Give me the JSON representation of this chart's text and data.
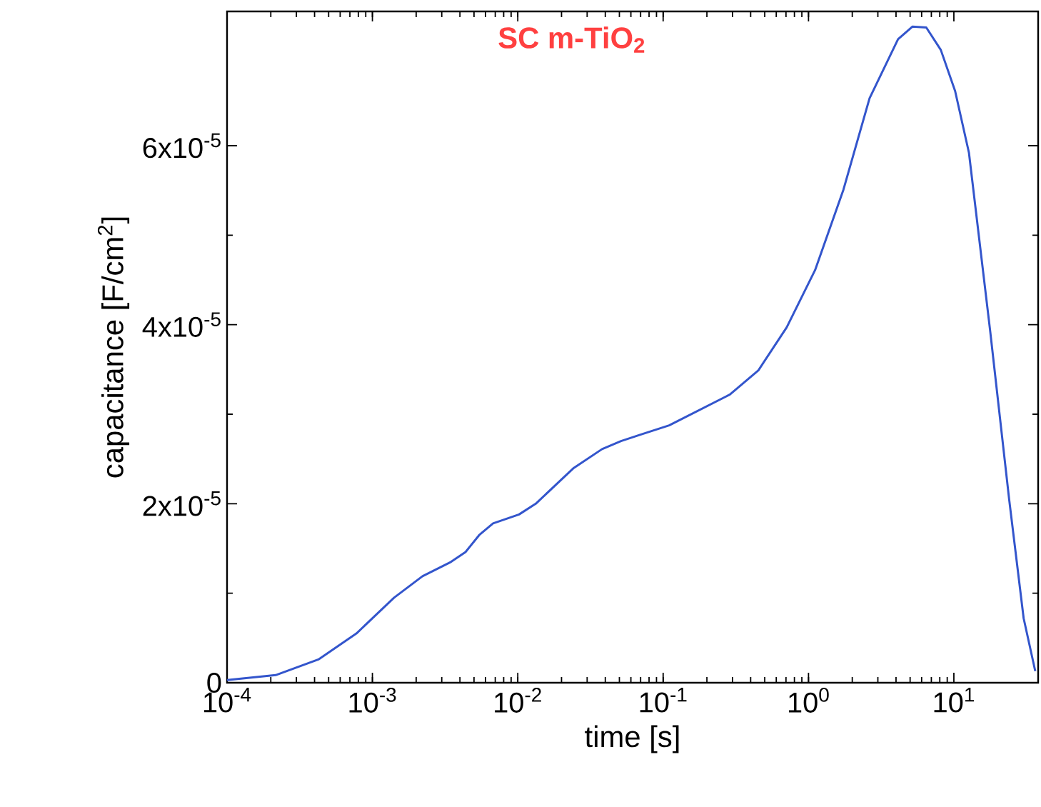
{
  "chart_data": {
    "type": "line",
    "xlabel": "time [s]",
    "ylabel": "capacitance [F/cm$^{2}$]",
    "log": "x",
    "annotations": [
      "**SC m-TiO$_{2}$**"
    ],
    "xlim": [
      0.0001,
      38
    ],
    "ylim": [
      0,
      7.5e-05
    ],
    "xticks": [
      {
        "value": 0.0001,
        "label": "10$^{-4}$"
      },
      {
        "value": 0.001,
        "label": "10$^{-3}$"
      },
      {
        "value": 0.01,
        "label": "10$^{-2}$"
      },
      {
        "value": 0.1,
        "label": "10$^{-1}$"
      },
      {
        "value": 1,
        "label": "10$^{0}$"
      },
      {
        "value": 10,
        "label": "10$^{1}$"
      }
    ],
    "yticks": [
      0,
      {
        "value": 2e-05,
        "label": "2x10$^{-5}$"
      },
      {
        "value": 4e-05,
        "label": "4x10$^{-5}$"
      },
      {
        "value": 6e-05,
        "label": "6x10$^{-5}$"
      }
    ],
    "series": [
      {
        "color": "#3355cc",
        "x": [
          0.0001,
          0.000216,
          0.000425,
          0.000776,
          0.00141,
          0.00221,
          0.00347,
          0.00437,
          0.00543,
          0.00676,
          0.0102,
          0.0133,
          0.0243,
          0.038,
          0.0513,
          0.0692,
          0.11,
          0.288,
          0.452,
          0.708,
          1.11,
          1.74,
          2.63,
          4.13,
          5.18,
          6.46,
          8.13,
          10.2,
          12.7,
          17.8,
          24,
          30.2,
          36.3
        ],
        "values": [
          3e-07,
          8.5e-07,
          2.6e-06,
          5.5e-06,
          9.5e-06,
          1.19e-05,
          1.35e-05,
          1.46e-05,
          1.65e-05,
          1.78e-05,
          1.88e-05,
          2e-05,
          2.4e-05,
          2.61e-05,
          2.7e-05,
          2.77e-05,
          2.875e-05,
          3.22e-05,
          3.49e-05,
          3.97e-05,
          4.61e-05,
          5.51e-05,
          6.53e-05,
          7.19e-05,
          7.33e-05,
          7.32e-05,
          7.07e-05,
          6.61e-05,
          5.92e-05,
          3.92e-05,
          2.05e-05,
          7.2e-06,
          1.3e-06
        ]
      }
    ]
  }
}
